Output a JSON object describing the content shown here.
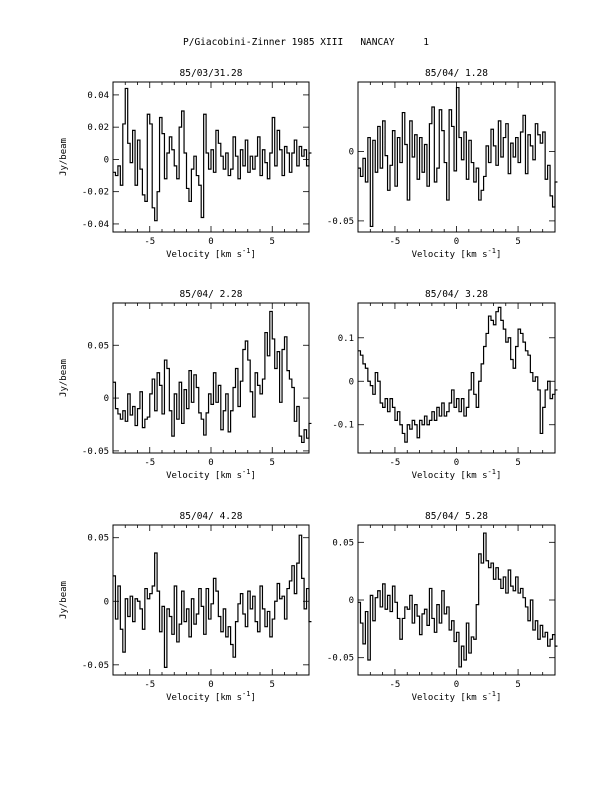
{
  "page": {
    "title": "P/Giacobini-Zinner 1985 XIII   NANCAY     1"
  },
  "chart_data": [
    {
      "type": "line",
      "step": true,
      "title": "85/03/31.28",
      "xlabel": "Velocity [km s",
      "xlabel_sup": "-1",
      "xlabel_close": "]",
      "ylabel": "Jy/beam",
      "xlim": [
        -8,
        8
      ],
      "ylim": [
        -0.045,
        0.048
      ],
      "xticks": [
        -5,
        0,
        5
      ],
      "xtick_labels": [
        "-5",
        "0",
        "5"
      ],
      "yticks": [
        -0.04,
        -0.02,
        0,
        0.02,
        0.04
      ],
      "ytick_labels": [
        "-0.04",
        "-0.02",
        "0",
        "0.02",
        "0.04"
      ],
      "x_start": -8,
      "dx": 0.2,
      "y": [
        -0.008,
        -0.01,
        -0.004,
        -0.016,
        0.022,
        0.044,
        0.01,
        -0.002,
        0.018,
        -0.016,
        0.012,
        -0.006,
        -0.022,
        -0.026,
        0.028,
        0.022,
        -0.03,
        -0.038,
        -0.02,
        0.026,
        0.016,
        -0.012,
        0.004,
        0.014,
        0.006,
        -0.004,
        -0.012,
        0.02,
        0.03,
        0.004,
        -0.018,
        -0.026,
        -0.006,
        0.002,
        -0.01,
        -0.016,
        -0.036,
        0.028,
        0.004,
        -0.006,
        0.006,
        -0.008,
        0.018,
        0.01,
        0.002,
        -0.006,
        0.004,
        -0.01,
        -0.006,
        0.014,
        0.002,
        -0.012,
        0.006,
        -0.004,
        0.012,
        -0.008,
        0.002,
        -0.006,
        0.002,
        0.014,
        -0.01,
        0.006,
        -0.002,
        -0.012,
        0.004,
        0.026,
        -0.004,
        0.018,
        0.006,
        -0.01,
        0.008,
        0.004,
        -0.008,
        0.004,
        0.012,
        -0.004,
        0.008,
        0.002,
        0.006,
        -0.004,
        0.004
      ]
    },
    {
      "type": "line",
      "step": true,
      "title": "85/04/ 1.28",
      "xlabel": "Velocity [km s",
      "xlabel_sup": "-1",
      "xlabel_close": "]",
      "ylabel": "",
      "xlim": [
        -8,
        8
      ],
      "ylim": [
        -0.058,
        0.05
      ],
      "xticks": [
        -5,
        0,
        5
      ],
      "xtick_labels": [
        "-5",
        "0",
        "5"
      ],
      "yticks": [
        -0.05,
        0
      ],
      "ytick_labels": [
        "-0.05",
        "0"
      ],
      "x_start": -8,
      "dx": 0.2,
      "y": [
        -0.012,
        -0.018,
        -0.005,
        -0.022,
        0.01,
        -0.054,
        0.008,
        -0.015,
        0.018,
        -0.012,
        0.022,
        -0.003,
        -0.028,
        -0.01,
        0.015,
        -0.025,
        0.01,
        -0.008,
        0.028,
        0.005,
        -0.035,
        0.022,
        -0.004,
        0.012,
        -0.02,
        0.01,
        -0.015,
        0.005,
        -0.025,
        0.02,
        0.032,
        -0.022,
        -0.012,
        0.03,
        0.015,
        -0.008,
        -0.035,
        0.03,
        0.018,
        -0.014,
        0.046,
        0.01,
        -0.006,
        0.014,
        -0.02,
        0.008,
        -0.008,
        -0.022,
        -0.012,
        -0.035,
        -0.028,
        -0.018,
        0.004,
        -0.008,
        0.016,
        0.004,
        -0.01,
        0.022,
        -0.004,
        0.01,
        0.02,
        -0.016,
        0.006,
        -0.004,
        0.01,
        -0.008,
        0.014,
        0.026,
        -0.016,
        0.012,
        0.004,
        -0.006,
        0.02,
        0.012,
        0.006,
        0.014,
        -0.02,
        -0.01,
        -0.032,
        -0.04,
        -0.022
      ]
    },
    {
      "type": "line",
      "step": true,
      "title": "85/04/ 2.28",
      "xlabel": "Velocity [km s",
      "xlabel_sup": "-1",
      "xlabel_close": "]",
      "ylabel": "Jy/beam",
      "xlim": [
        -8,
        8
      ],
      "ylim": [
        -0.052,
        0.09
      ],
      "xticks": [
        -5,
        0,
        5
      ],
      "xtick_labels": [
        "-5",
        "0",
        "5"
      ],
      "yticks": [
        -0.05,
        0,
        0.05
      ],
      "ytick_labels": [
        "-0.05",
        "0",
        "0.05"
      ],
      "x_start": -8,
      "dx": 0.2,
      "y": [
        0.015,
        -0.01,
        -0.015,
        -0.02,
        -0.012,
        -0.022,
        0.004,
        -0.016,
        -0.008,
        -0.026,
        -0.01,
        0.006,
        -0.028,
        -0.02,
        -0.018,
        0.004,
        0.018,
        -0.012,
        0.024,
        0.012,
        -0.015,
        0.036,
        0.028,
        -0.012,
        -0.036,
        0.004,
        -0.02,
        0.015,
        -0.024,
        0.008,
        -0.01,
        0.026,
        -0.004,
        0.022,
        0.01,
        -0.014,
        -0.02,
        -0.035,
        -0.014,
        0.004,
        -0.006,
        0.024,
        -0.004,
        0.012,
        -0.03,
        -0.012,
        0.004,
        -0.032,
        -0.012,
        0.01,
        0.028,
        -0.008,
        0.016,
        0.046,
        0.054,
        0.036,
        0.006,
        -0.018,
        0.024,
        0.012,
        0.004,
        0.018,
        0.062,
        0.04,
        0.082,
        0.056,
        0.028,
        0.044,
        -0.004,
        0.046,
        0.058,
        0.026,
        0.018,
        0.01,
        -0.022,
        -0.008,
        -0.036,
        -0.042,
        -0.03,
        -0.038,
        -0.024
      ]
    },
    {
      "type": "line",
      "step": true,
      "title": "85/04/ 3.28",
      "xlabel": "Velocity [km s",
      "xlabel_sup": "-1",
      "xlabel_close": "]",
      "ylabel": "",
      "xlim": [
        -8,
        8
      ],
      "ylim": [
        -0.165,
        0.18
      ],
      "xticks": [
        -5,
        0,
        5
      ],
      "xtick_labels": [
        "-5",
        "0",
        "5"
      ],
      "yticks": [
        -0.1,
        0,
        0.1
      ],
      "ytick_labels": [
        "-0.1",
        "0",
        "0.1"
      ],
      "x_start": -8,
      "dx": 0.2,
      "y": [
        0.07,
        0.06,
        0.04,
        0.03,
        0.0,
        -0.01,
        -0.03,
        0.02,
        0.0,
        -0.05,
        -0.06,
        -0.04,
        -0.07,
        -0.04,
        -0.06,
        -0.09,
        -0.07,
        -0.1,
        -0.12,
        -0.14,
        -0.1,
        -0.11,
        -0.09,
        -0.1,
        -0.13,
        -0.09,
        -0.1,
        -0.08,
        -0.1,
        -0.09,
        -0.07,
        -0.09,
        -0.06,
        -0.08,
        -0.05,
        -0.08,
        -0.07,
        -0.05,
        -0.02,
        -0.06,
        -0.04,
        -0.07,
        -0.04,
        -0.08,
        -0.06,
        -0.02,
        0.02,
        -0.03,
        -0.06,
        0.0,
        0.04,
        0.08,
        0.11,
        0.15,
        0.14,
        0.13,
        0.16,
        0.17,
        0.14,
        0.12,
        0.09,
        0.1,
        0.05,
        0.03,
        0.08,
        0.12,
        0.11,
        0.09,
        0.07,
        0.06,
        0.02,
        0.0,
        0.01,
        -0.02,
        -0.12,
        -0.06,
        -0.02,
        0.0,
        -0.04,
        -0.03,
        -0.02
      ]
    },
    {
      "type": "line",
      "step": true,
      "title": "85/04/ 4.28",
      "xlabel": "Velocity [km s",
      "xlabel_sup": "-1",
      "xlabel_close": "]",
      "ylabel": "Jy/beam",
      "xlim": [
        -8,
        8
      ],
      "ylim": [
        -0.058,
        0.06
      ],
      "xticks": [
        -5,
        0,
        5
      ],
      "xtick_labels": [
        "-5",
        "0",
        "5"
      ],
      "yticks": [
        -0.05,
        0,
        0.05
      ],
      "ytick_labels": [
        "-0.05",
        "0",
        "0.05"
      ],
      "x_start": -8,
      "dx": 0.2,
      "y": [
        0.02,
        -0.014,
        0.012,
        -0.022,
        -0.04,
        0.002,
        -0.012,
        0.004,
        -0.016,
        0.002,
        0.0,
        -0.006,
        -0.022,
        0.01,
        0.002,
        0.006,
        0.012,
        0.038,
        0.008,
        -0.024,
        -0.004,
        -0.052,
        -0.006,
        -0.012,
        -0.026,
        0.012,
        -0.032,
        -0.018,
        0.008,
        -0.016,
        -0.006,
        -0.028,
        0.002,
        -0.018,
        -0.01,
        0.01,
        -0.004,
        -0.026,
        0.01,
        -0.014,
        -0.002,
        0.018,
        0.008,
        -0.012,
        -0.024,
        -0.006,
        -0.028,
        -0.02,
        -0.034,
        -0.044,
        -0.016,
        -0.002,
        0.006,
        -0.01,
        -0.02,
        0.008,
        -0.006,
        0.004,
        -0.016,
        -0.024,
        0.012,
        -0.006,
        -0.02,
        -0.008,
        -0.028,
        -0.014,
        0.0,
        0.014,
        0.002,
        0.004,
        -0.014,
        0.01,
        0.016,
        0.028,
        0.006,
        0.03,
        0.052,
        0.018,
        -0.006,
        0.01,
        -0.016
      ]
    },
    {
      "type": "line",
      "step": true,
      "title": "85/04/ 5.28",
      "xlabel": "Velocity [km s",
      "xlabel_sup": "-1",
      "xlabel_close": "]",
      "ylabel": "",
      "xlim": [
        -8,
        8
      ],
      "ylim": [
        -0.065,
        0.065
      ],
      "xticks": [
        -5,
        0,
        5
      ],
      "xtick_labels": [
        "-5",
        "0",
        "5"
      ],
      "yticks": [
        -0.05,
        0,
        0.05
      ],
      "ytick_labels": [
        "-0.05",
        "0",
        "0.05"
      ],
      "x_start": -8,
      "dx": 0.2,
      "y": [
        -0.002,
        -0.02,
        -0.038,
        -0.01,
        -0.052,
        0.004,
        -0.018,
        0.002,
        0.008,
        -0.006,
        0.014,
        -0.008,
        0.004,
        -0.01,
        0.012,
        -0.002,
        -0.016,
        -0.034,
        -0.016,
        -0.006,
        -0.008,
        0.004,
        -0.02,
        -0.004,
        -0.014,
        -0.03,
        -0.012,
        -0.008,
        -0.022,
        0.01,
        -0.016,
        -0.028,
        -0.004,
        -0.02,
        0.008,
        -0.012,
        -0.006,
        -0.026,
        -0.018,
        -0.036,
        -0.028,
        -0.058,
        -0.04,
        -0.052,
        -0.02,
        -0.046,
        -0.032,
        -0.034,
        -0.004,
        0.04,
        0.032,
        0.058,
        0.034,
        0.028,
        0.032,
        0.018,
        0.028,
        0.018,
        0.01,
        0.02,
        0.006,
        0.026,
        0.012,
        0.008,
        0.02,
        0.006,
        0.01,
        0.002,
        -0.006,
        -0.018,
        0.0,
        -0.026,
        -0.018,
        -0.034,
        -0.022,
        -0.032,
        -0.028,
        -0.04,
        -0.034,
        -0.03,
        -0.04
      ]
    }
  ]
}
